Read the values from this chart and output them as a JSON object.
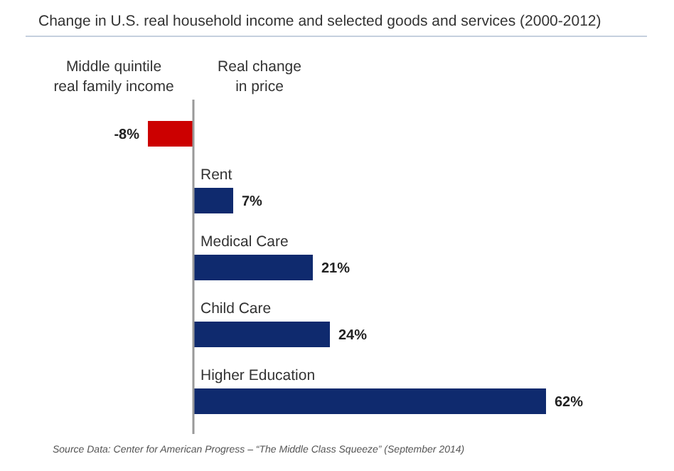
{
  "chart_data": {
    "type": "bar",
    "orientation": "horizontal",
    "title": "Change in U.S. real household income and selected goods and services (2000-2012)",
    "categories": [
      null,
      "Rent",
      "Medical Care",
      "Child Care",
      "Higher Education"
    ],
    "values": [
      -8,
      7,
      21,
      24,
      62
    ],
    "colors": [
      "#cc0000",
      "#0f2a6e",
      "#0f2a6e",
      "#0f2a6e",
      "#0f2a6e"
    ],
    "value_labels": [
      "-8%",
      "7%",
      "21%",
      "24%",
      "62%"
    ],
    "annotations": [
      "Middle quintile\nreal family income",
      "Real change\nin price",
      "Source Data: Center for American Progress – “The Middle Class Squeeze” (September 2014)"
    ]
  }
}
